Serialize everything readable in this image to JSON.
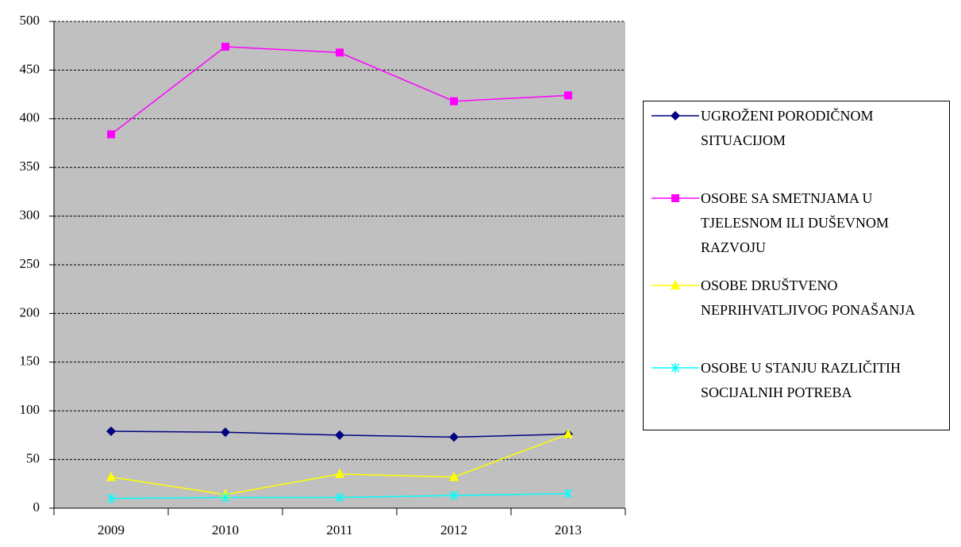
{
  "chart_data": {
    "type": "line",
    "categories": [
      "2009",
      "2010",
      "2011",
      "2012",
      "2013"
    ],
    "series": [
      {
        "name": "UGROŽENI PORODIČNOM SITUACIJOM",
        "color": "#000080",
        "marker": "diamond",
        "values": [
          79,
          78,
          75,
          73,
          76
        ]
      },
      {
        "name": "OSOBE SA SMETNJAMA  U TJELESNOM ILI DUŠEVNOM RAZVOJU",
        "color": "#ff00ff",
        "marker": "square",
        "values": [
          384,
          474,
          468,
          418,
          424
        ]
      },
      {
        "name": "OSOBE DRUŠTVENO NEPRIHVATLJIVOG PONAŠANJA",
        "color": "#ffff00",
        "marker": "triangle",
        "values": [
          32,
          14,
          35,
          32,
          76
        ]
      },
      {
        "name": "OSOBE U STANJU RAZLIČITIH SOCIJALNIH POTREBA",
        "color": "#00ffff",
        "marker": "star",
        "values": [
          10,
          11,
          11,
          13,
          15
        ]
      }
    ],
    "ylim": [
      0,
      500
    ],
    "yticks": [
      0,
      50,
      100,
      150,
      200,
      250,
      300,
      350,
      400,
      450,
      500
    ],
    "grid": true,
    "plot_background": "#c0c0c0",
    "legend": "right"
  }
}
